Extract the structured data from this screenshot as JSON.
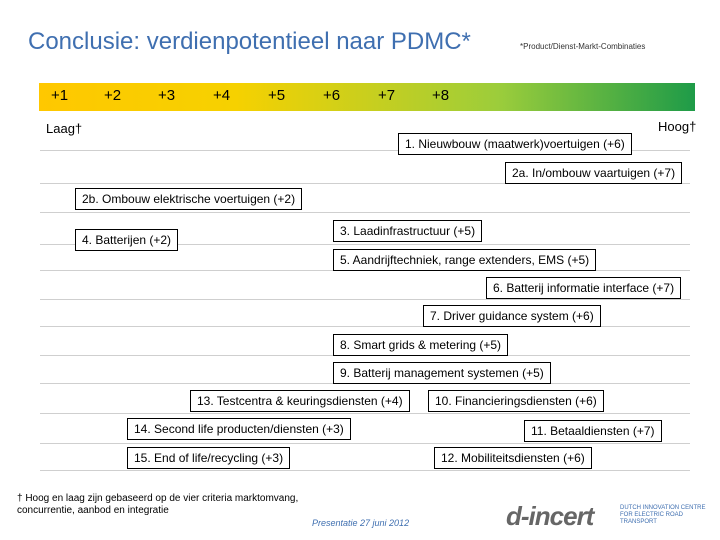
{
  "header": {
    "title": "Conclusie: verdienpotentieel naar PDMC*",
    "note": "*Product/Dienst-Markt-Combinaties"
  },
  "scale": {
    "ticks": [
      "+1",
      "+2",
      "+3",
      "+4",
      "+5",
      "+6",
      "+7",
      "+8"
    ],
    "low_label": "Laag†",
    "high_label": "Hoog†"
  },
  "items": [
    "1. Nieuwbouw (maatwerk)voertuigen (+6)",
    "2a. In/ombouw vaartuigen (+7)",
    "2b. Ombouw elektrische voertuigen (+2)",
    "3. Laadinfrastructuur (+5)",
    "4. Batterijen (+2)",
    "5. Aandrijftechniek, range extenders, EMS (+5)",
    "6. Batterij informatie interface (+7)",
    "7. Driver guidance system (+6)",
    "8. Smart grids & metering (+5)",
    "9. Batterij management systemen (+5)",
    "13. Testcentra & keuringsdiensten (+4)",
    "10. Financieringsdiensten (+6)",
    "14. Second life producten/diensten (+3)",
    "11. Betaaldiensten (+7)",
    "15. End of life/recycling (+3)",
    "12. Mobiliteitsdiensten (+6)"
  ],
  "footer": {
    "footnote": "† Hoog en laag zijn gebaseerd op de vier criteria marktomvang, concurrentie, aanbod en integratie",
    "date": "Presentatie 27 juni 2012",
    "logo_text": "d-incert",
    "logo_sub": "DUTCH INNOVATION CENTRE FOR ELECTRIC ROAD TRANSPORT"
  },
  "colors": {
    "title": "#3f6fb0",
    "scale_start": "#ffc800",
    "scale_end": "#1e9b48"
  }
}
